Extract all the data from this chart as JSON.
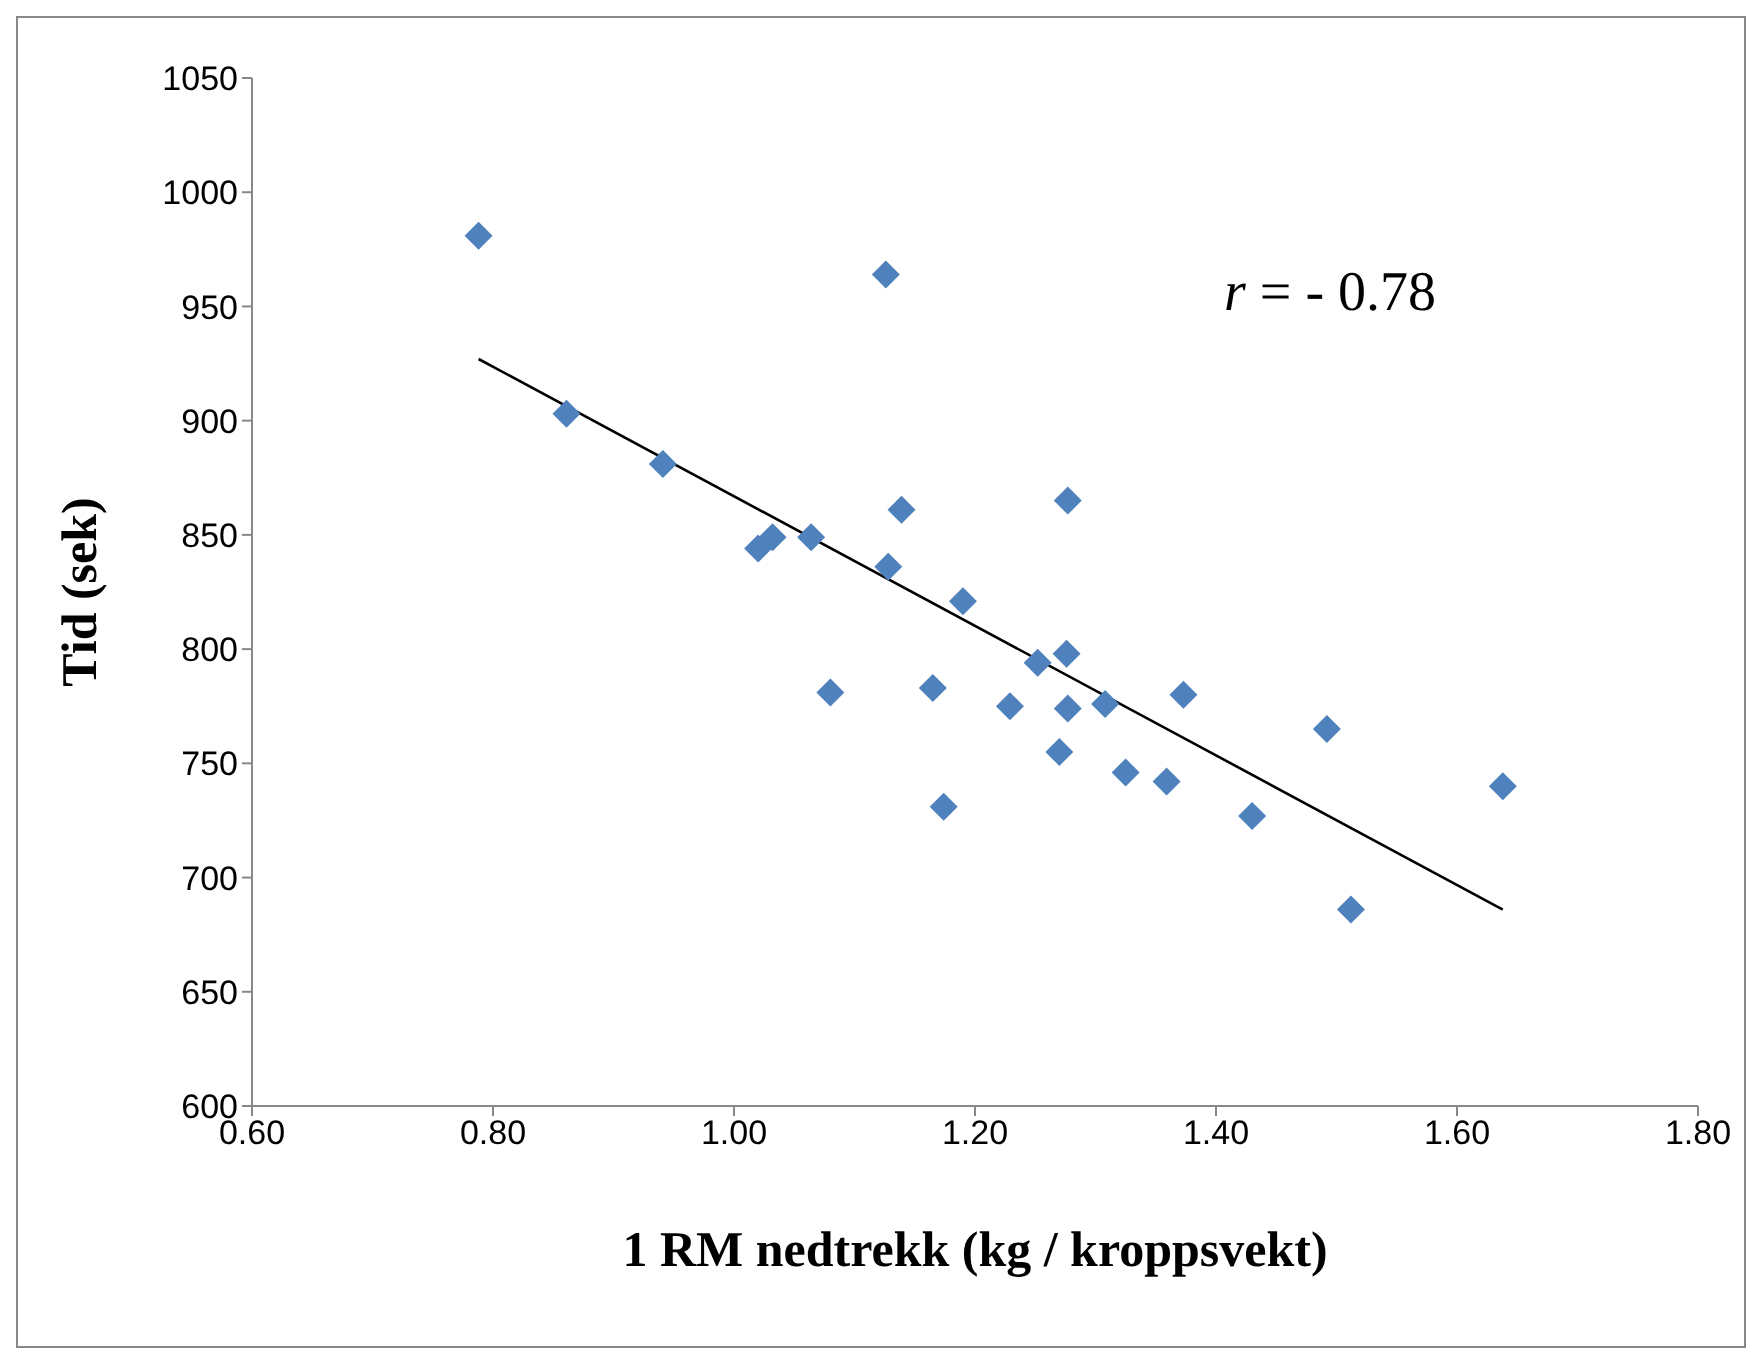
{
  "chart_data": {
    "type": "scatter",
    "xlabel": "1 RM nedtrekk (kg / kroppsvekt)",
    "ylabel": "Tid (sek)",
    "annotations": [
      "r = - 0.78"
    ],
    "xlim": [
      0.6,
      1.8
    ],
    "xticks": [
      {
        "value": 0.6,
        "label": "0.60"
      },
      {
        "value": 0.8,
        "label": "0.80"
      },
      {
        "value": 1.0,
        "label": "1.00"
      },
      {
        "value": 1.2,
        "label": "1.20"
      },
      {
        "value": 1.4,
        "label": "1.40"
      },
      {
        "value": 1.6,
        "label": "1.60"
      },
      {
        "value": 1.8,
        "label": "1.80"
      }
    ],
    "ylim": [
      600,
      1050
    ],
    "yticks": [
      600,
      650,
      700,
      750,
      800,
      850,
      900,
      950,
      1000,
      1050
    ],
    "series": [
      {
        "color": "#4f81bd",
        "marker": "diamond",
        "x": [
          0.788,
          0.861,
          0.941,
          1.02,
          1.032,
          1.064,
          1.126,
          1.139,
          1.128,
          1.08,
          1.19,
          1.165,
          1.174,
          1.229,
          1.252,
          1.276,
          1.277,
          1.277,
          1.27,
          1.308,
          1.325,
          1.359,
          1.373,
          1.43,
          1.492,
          1.512,
          1.638
        ],
        "values": [
          981,
          903,
          881,
          844,
          849,
          849,
          964,
          861,
          836,
          781,
          821,
          783,
          731,
          775,
          794,
          798,
          865,
          774,
          755,
          776,
          746,
          742,
          780,
          727,
          765,
          686,
          740
        ]
      },
      {
        "type": "line",
        "color": "#000000",
        "marker": "none",
        "line_style": "solid",
        "x": [
          0.788,
          1.638
        ],
        "values": [
          927,
          686
        ]
      }
    ]
  }
}
